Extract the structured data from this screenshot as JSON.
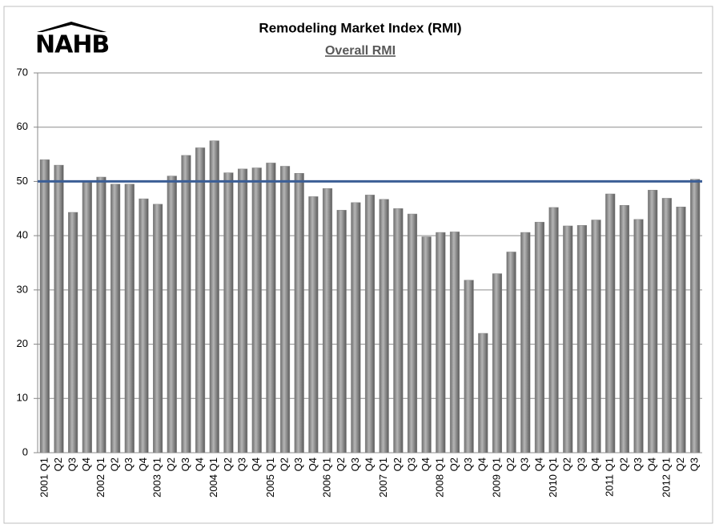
{
  "chart_data": {
    "type": "bar",
    "logo": "NAHB",
    "title": "Remodeling Market Index (RMI)",
    "subtitle": "Overall RMI",
    "categories": [
      "2001 Q1",
      "Q2",
      "Q3",
      "Q4",
      "2002 Q1",
      "Q2",
      "Q3",
      "Q4",
      "2003 Q1",
      "Q2",
      "Q3",
      "Q4",
      "2004 Q1",
      "Q2",
      "Q3",
      "Q4",
      "2005 Q1",
      "Q2",
      "Q3",
      "Q4",
      "2006 Q1",
      "Q2",
      "Q3",
      "Q4",
      "2007 Q1",
      "Q2",
      "Q3",
      "Q4",
      "2008 Q1",
      "Q2",
      "Q3",
      "Q4",
      "2009 Q1",
      "Q2",
      "Q3",
      "Q4",
      "2010 Q1",
      "Q2",
      "Q3",
      "Q4",
      "2011 Q1",
      "Q2",
      "Q3",
      "Q4",
      "2012 Q1",
      "Q2",
      "Q3"
    ],
    "values": [
      54,
      53,
      44.3,
      50,
      50.8,
      49.5,
      49.5,
      46.8,
      45.8,
      51,
      54.8,
      56.2,
      57.5,
      51.6,
      52.3,
      52.5,
      53.4,
      52.8,
      51.5,
      47.2,
      48.7,
      44.7,
      46.1,
      47.5,
      46.7,
      45,
      44,
      39.8,
      40.6,
      40.7,
      31.8,
      22,
      33,
      37,
      40.6,
      42.5,
      45.2,
      41.8,
      41.9,
      42.9,
      47.7,
      45.6,
      43,
      48.4,
      46.9,
      45.3,
      50.4
    ],
    "color": "#8a8a8a",
    "reference_line": 50,
    "reference_color": "#3b5e96",
    "ylim": [
      0,
      70
    ],
    "yticks": [
      0,
      10,
      20,
      30,
      40,
      50,
      60,
      70
    ],
    "grid": true
  }
}
